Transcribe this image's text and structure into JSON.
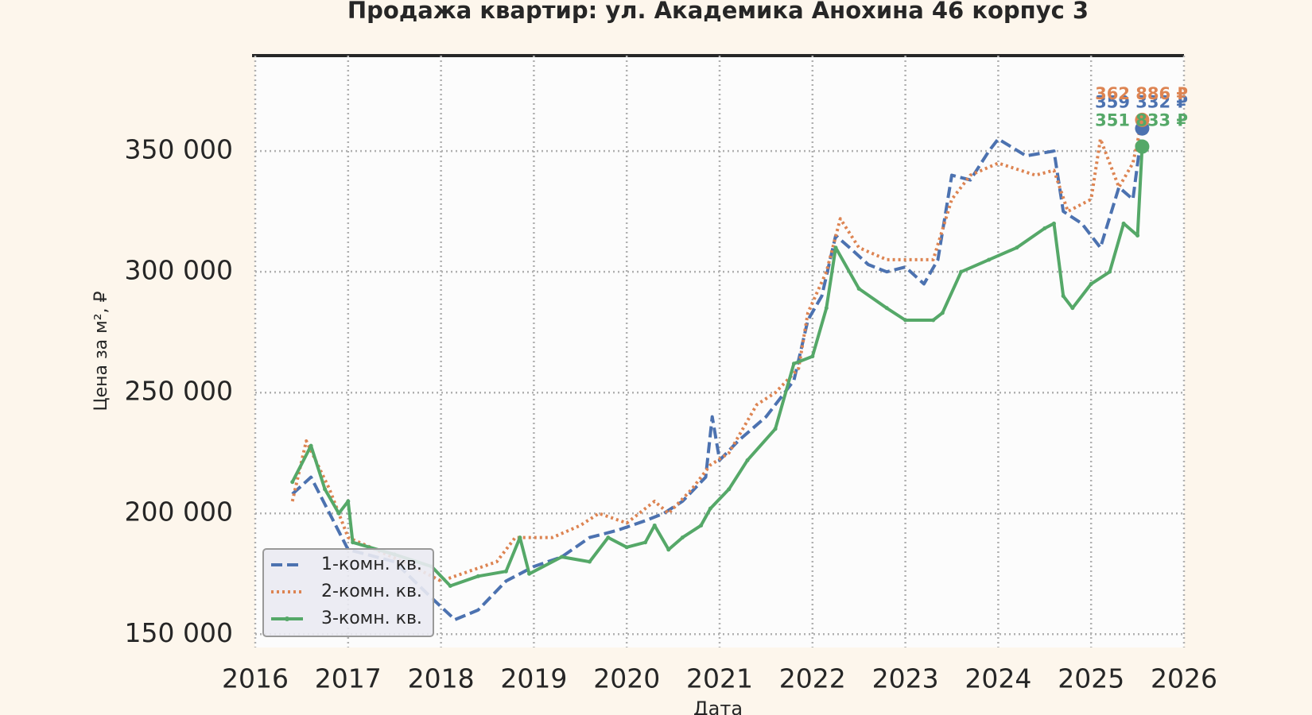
{
  "chart_data": {
    "type": "line",
    "title": "Продажа квартир: ул. Академика Анохина 46 корпус 3",
    "xlabel": "Дата",
    "ylabel": "Цена за м², ₽",
    "xlim": [
      2016,
      2026
    ],
    "ylim": [
      144500,
      389500
    ],
    "xticks": [
      2016,
      2017,
      2018,
      2019,
      2020,
      2021,
      2022,
      2023,
      2024,
      2025,
      2026
    ],
    "yticks": [
      {
        "value": 150000,
        "label": "150 000"
      },
      {
        "value": 200000,
        "label": "200 000"
      },
      {
        "value": 250000,
        "label": "250 000"
      },
      {
        "value": 300000,
        "label": "300 000"
      },
      {
        "value": 350000,
        "label": "350 000"
      }
    ],
    "grid": true,
    "legend": "lower left",
    "series": [
      {
        "name": "1-комн. кв.",
        "color": "#4c72b0",
        "linestyle": "dashed",
        "x": [
          2016.4,
          2016.6,
          2017.0,
          2017.5,
          2017.9,
          2018.15,
          2018.4,
          2018.7,
          2019.0,
          2019.3,
          2019.6,
          2019.9,
          2020.2,
          2020.4,
          2020.6,
          2020.85,
          2020.92,
          2021.0,
          2021.2,
          2021.5,
          2021.7,
          2021.8,
          2021.95,
          2022.1,
          2022.25,
          2022.4,
          2022.6,
          2022.8,
          2023.0,
          2023.2,
          2023.35,
          2023.5,
          2023.7,
          2023.9,
          2024.0,
          2024.3,
          2024.6,
          2024.7,
          2024.9,
          2025.1,
          2025.3,
          2025.45,
          2025.55
        ],
        "values": [
          208000,
          215000,
          185000,
          180000,
          165000,
          156000,
          160000,
          172000,
          178000,
          182000,
          190000,
          193000,
          197000,
          200000,
          205000,
          215000,
          240000,
          222000,
          230000,
          240000,
          250000,
          255000,
          280000,
          290000,
          315000,
          310000,
          303000,
          300000,
          302000,
          295000,
          305000,
          340000,
          338000,
          350000,
          355000,
          348000,
          350000,
          325000,
          320000,
          310000,
          335000,
          330000,
          359332
        ]
      },
      {
        "name": "2-комн. кв.",
        "color": "#dd8452",
        "linestyle": "dotted",
        "x": [
          2016.4,
          2016.55,
          2016.8,
          2017.0,
          2017.3,
          2017.7,
          2018.0,
          2018.3,
          2018.6,
          2018.8,
          2019.2,
          2019.5,
          2019.7,
          2020.0,
          2020.3,
          2020.45,
          2020.7,
          2020.9,
          2021.1,
          2021.4,
          2021.6,
          2021.85,
          2021.95,
          2022.15,
          2022.3,
          2022.5,
          2022.8,
          2023.1,
          2023.3,
          2023.5,
          2023.7,
          2024.0,
          2024.4,
          2024.6,
          2024.75,
          2025.0,
          2025.1,
          2025.3,
          2025.45,
          2025.55
        ],
        "values": [
          205000,
          230000,
          210000,
          190000,
          185000,
          178000,
          172000,
          176000,
          180000,
          190000,
          190000,
          195000,
          200000,
          196000,
          205000,
          200000,
          210000,
          220000,
          225000,
          245000,
          250000,
          260000,
          283000,
          300000,
          322000,
          310000,
          305000,
          305000,
          305000,
          330000,
          340000,
          345000,
          340000,
          342000,
          325000,
          330000,
          355000,
          335000,
          345000,
          362886
        ]
      },
      {
        "name": "3-комн. кв.",
        "color": "#55a868",
        "linestyle": "solid",
        "marker": "dot",
        "x": [
          2016.4,
          2016.6,
          2016.75,
          2016.9,
          2017.0,
          2017.05,
          2017.5,
          2017.9,
          2018.1,
          2018.4,
          2018.7,
          2018.85,
          2018.95,
          2019.3,
          2019.6,
          2019.8,
          2020.0,
          2020.2,
          2020.3,
          2020.45,
          2020.6,
          2020.8,
          2020.9,
          2021.1,
          2021.3,
          2021.6,
          2021.8,
          2022.0,
          2022.15,
          2022.25,
          2022.5,
          2022.8,
          2023.0,
          2023.3,
          2023.4,
          2023.6,
          2023.9,
          2024.2,
          2024.5,
          2024.6,
          2024.7,
          2024.8,
          2025.0,
          2025.2,
          2025.35,
          2025.5,
          2025.55
        ],
        "values": [
          213000,
          228000,
          210000,
          200000,
          205000,
          188000,
          183000,
          178000,
          170000,
          174000,
          176000,
          190000,
          175000,
          182000,
          180000,
          190000,
          186000,
          188000,
          195000,
          185000,
          190000,
          195000,
          202000,
          210000,
          222000,
          235000,
          262000,
          265000,
          285000,
          310000,
          293000,
          285000,
          280000,
          280000,
          283000,
          300000,
          305000,
          310000,
          318000,
          320000,
          290000,
          285000,
          295000,
          300000,
          320000,
          315000,
          351833
        ]
      }
    ],
    "annotations": [
      {
        "text": "359 332 ₽",
        "x": 2025.55,
        "y": 359332,
        "color": "#4c72b0"
      },
      {
        "text": "362 886 ₽",
        "x": 2025.55,
        "y": 362886,
        "color": "#dd8452"
      },
      {
        "text": "351 833 ₽",
        "x": 2025.55,
        "y": 351833,
        "color": "#55a868"
      }
    ]
  }
}
